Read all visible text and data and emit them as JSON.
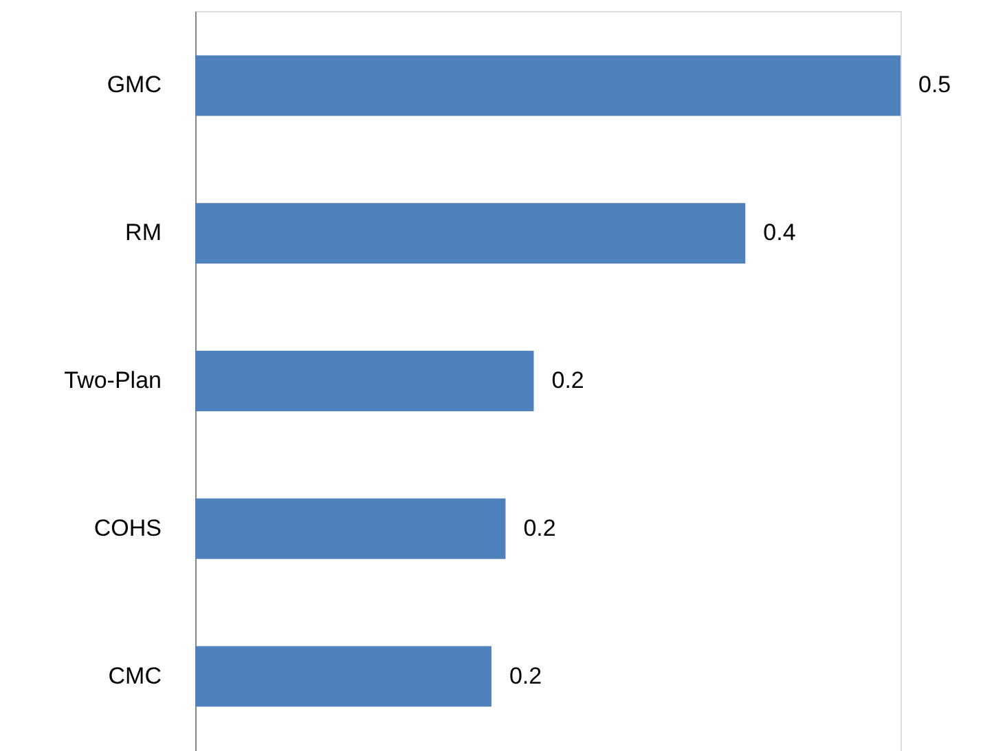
{
  "chart_data": {
    "type": "bar",
    "orientation": "horizontal",
    "categories": [
      "GMC",
      "RM",
      "Two-Plan",
      "COHS",
      "CMC"
    ],
    "values": [
      0.5,
      0.39,
      0.24,
      0.22,
      0.21
    ],
    "value_labels": [
      "0.5",
      "0.4",
      "0.2",
      "0.2",
      "0.2"
    ],
    "xlim": [
      0,
      0.5
    ],
    "tick_labels": "y",
    "color": "#4f81bd"
  }
}
